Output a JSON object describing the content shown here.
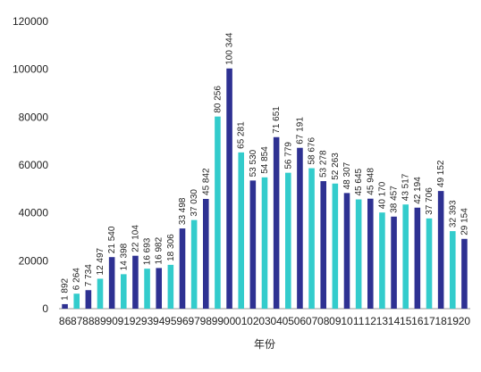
{
  "chart_data": {
    "type": "bar",
    "title": "",
    "xlabel": "年份",
    "ylabel": "",
    "ylim": [
      0,
      120000
    ],
    "yticks": [
      0,
      20000,
      40000,
      60000,
      80000,
      100000,
      120000
    ],
    "grid": false,
    "legend": "none",
    "categories": [
      "86",
      "87",
      "88",
      "89",
      "90",
      "91",
      "92",
      "93",
      "94",
      "95",
      "96",
      "97",
      "98",
      "99",
      "00",
      "01",
      "02",
      "03",
      "04",
      "05",
      "06",
      "07",
      "08",
      "09",
      "10",
      "11",
      "12",
      "13",
      "14",
      "15",
      "16",
      "17",
      "18",
      "19",
      "20"
    ],
    "values": [
      1892,
      6264,
      7734,
      12497,
      21540,
      14398,
      22104,
      16693,
      16982,
      18306,
      33498,
      37030,
      45842,
      80256,
      100344,
      65281,
      53530,
      54854,
      71651,
      56779,
      67191,
      58676,
      53278,
      52263,
      48307,
      45645,
      45948,
      40170,
      38457,
      43517,
      42194,
      37706,
      49152,
      32393,
      29154
    ],
    "value_labels": [
      "1 892",
      "6 264",
      "7 734",
      "12 497",
      "21 540",
      "14 398",
      "22 104",
      "16 693",
      "16 982",
      "18 306",
      "33 498",
      "37 030",
      "45 842",
      "80 256",
      "100 344",
      "65 281",
      "53 530",
      "54 854",
      "71 651",
      "56 779",
      "67 191",
      "58 676",
      "53 278",
      "52 263",
      "48 307",
      "45 645",
      "45 948",
      "40 170",
      "38 457",
      "43 517",
      "42 194",
      "37 706",
      "49 152",
      "32 393",
      "29 154"
    ],
    "colors": {
      "dark": "#2e3192",
      "light": "#33cccc",
      "pattern": "alternating dark/light starting with dark"
    }
  }
}
